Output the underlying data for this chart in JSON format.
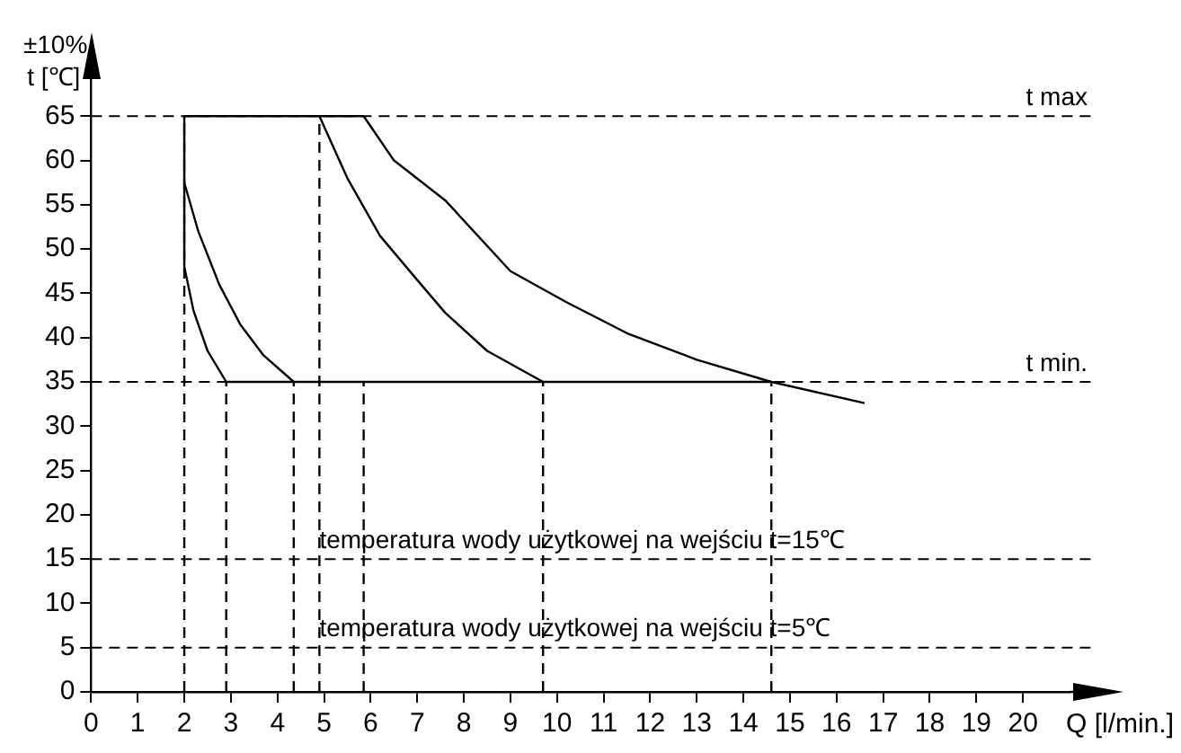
{
  "chart_data": {
    "type": "line",
    "xlabel": "Q [l/min.]",
    "ylabel": "t [℃]",
    "xlim": [
      0,
      21
    ],
    "xticks": [
      0,
      1,
      2,
      3,
      4,
      5,
      6,
      7,
      8,
      9,
      10,
      11,
      12,
      13,
      14,
      15,
      16,
      17,
      18,
      19,
      20
    ],
    "ylim": [
      0,
      70
    ],
    "yticks": [
      0,
      5,
      10,
      15,
      20,
      25,
      30,
      35,
      40,
      45,
      50,
      55,
      60,
      65
    ],
    "grid": false,
    "legend": false,
    "marker": "none",
    "line_style": "solid",
    "series": [
      {
        "color": "#000000",
        "x": [
          2,
          2,
          2.2,
          2.5,
          2.9
        ],
        "values": [
          65,
          48,
          43,
          38.5,
          35
        ]
      },
      {
        "color": "#000000",
        "x": [
          2,
          2.3,
          2.75,
          3.2,
          3.7,
          4.35
        ],
        "values": [
          57.5,
          52,
          46,
          41.5,
          38,
          35
        ]
      },
      {
        "color": "#000000",
        "x": [
          4.9,
          5.5,
          6.2,
          7,
          7.6,
          8.5,
          9.7
        ],
        "values": [
          65,
          58,
          51.5,
          46.5,
          42.8,
          38.5,
          35
        ]
      },
      {
        "color": "#000000",
        "x": [
          5.85,
          6.5,
          7.6,
          9,
          10.2,
          11.5,
          13,
          14.6,
          16.6
        ],
        "values": [
          65,
          60,
          55.5,
          47.5,
          44,
          40.5,
          37.5,
          35,
          32.6
        ]
      },
      {
        "color": "#000000",
        "x": [
          2,
          5.85
        ],
        "values": [
          65,
          65
        ]
      },
      {
        "color": "#000000",
        "x": [
          2.9,
          14.6
        ],
        "values": [
          35,
          35
        ]
      },
      {
        "color": "#000000",
        "line_style": "dashed",
        "x": [
          2,
          2
        ],
        "values": [
          0,
          65
        ]
      },
      {
        "color": "#000000",
        "line_style": "dashed",
        "x": [
          2.9,
          2.9
        ],
        "values": [
          0,
          35
        ]
      },
      {
        "color": "#000000",
        "line_style": "dashed",
        "x": [
          4.35,
          4.35
        ],
        "values": [
          0,
          35
        ]
      },
      {
        "color": "#000000",
        "line_style": "dashed",
        "x": [
          4.9,
          4.9
        ],
        "values": [
          0,
          65
        ]
      },
      {
        "color": "#000000",
        "line_style": "dashed",
        "x": [
          5.85,
          5.85
        ],
        "values": [
          0,
          35
        ]
      },
      {
        "color": "#000000",
        "line_style": "dashed",
        "x": [
          9.7,
          9.7
        ],
        "values": [
          0,
          35
        ]
      },
      {
        "color": "#000000",
        "line_style": "dashed",
        "x": [
          14.6,
          14.6
        ],
        "values": [
          0,
          35
        ]
      }
    ],
    "ref_lines": [
      {
        "axis": "y",
        "value": 65,
        "label": "t max",
        "line_style": "dashed",
        "color": "#000000"
      },
      {
        "axis": "y",
        "value": 35,
        "label": "t min.",
        "line_style": "dashed",
        "color": "#000000"
      },
      {
        "axis": "y",
        "value": 15,
        "line_style": "dashed",
        "color": "#000000"
      },
      {
        "axis": "y",
        "value": 5,
        "line_style": "dashed",
        "color": "#000000"
      }
    ],
    "annotations": [
      "±10%",
      {
        "text": "temperatura wody użytkowej na wejściu t=15℃",
        "x": 4.9,
        "y": 15
      },
      {
        "text": "temperatura wody użytkowej na wejściu t=5℃",
        "x": 4.9,
        "y": 5
      }
    ]
  }
}
